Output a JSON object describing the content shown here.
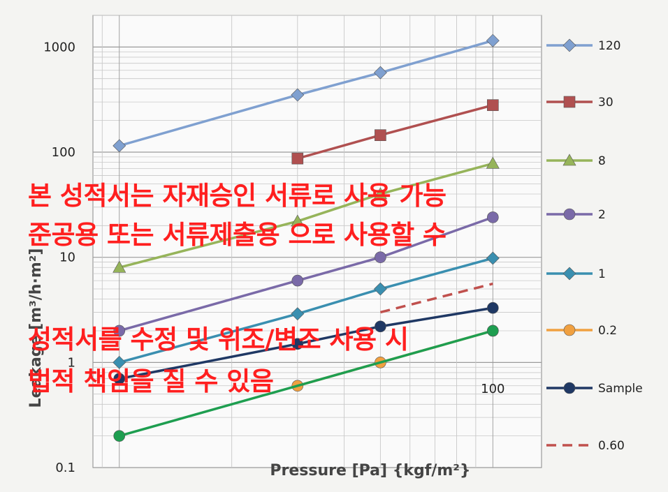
{
  "chart_data": {
    "type": "line",
    "xscale": "log",
    "yscale": "log",
    "xlabel": "Pressure [Pa] {kgf/m²}",
    "ylabel": "Leakage [m³/h·m²]",
    "ylim": [
      0.1,
      2000
    ],
    "yticks": [
      "1000",
      "100",
      "10",
      "1",
      "0.1"
    ],
    "xticks": [
      "100"
    ],
    "grid": true,
    "legend_position": "right",
    "series": [
      {
        "name": "120",
        "color": "#7fa0d0",
        "marker": "diamond",
        "x": [
          10,
          30,
          50,
          100
        ],
        "values": [
          115,
          350,
          570,
          1150
        ]
      },
      {
        "name": "30",
        "color": "#b05050",
        "marker": "square",
        "x": [
          30,
          50,
          100
        ],
        "values": [
          87,
          145,
          280
        ]
      },
      {
        "name": "8",
        "color": "#96b45a",
        "marker": "triangle",
        "x": [
          10,
          30,
          50,
          100
        ],
        "values": [
          8,
          22,
          40,
          78
        ]
      },
      {
        "name": "2",
        "color": "#7a6aa8",
        "marker": "circle",
        "x": [
          10,
          30,
          50,
          100
        ],
        "values": [
          2,
          6,
          10,
          24
        ]
      },
      {
        "name": "1",
        "color": "#3a8fb0",
        "marker": "diamond",
        "x": [
          10,
          30,
          50,
          100
        ],
        "values": [
          1,
          2.9,
          5,
          9.8
        ]
      },
      {
        "name": "0.2",
        "color": "#f0a040",
        "marker": "circle",
        "x": [
          30,
          50,
          100
        ],
        "values": [
          0.6,
          1,
          2
        ]
      },
      {
        "name": "Sample",
        "color": "#1f3864",
        "marker": "circle",
        "x": [
          10,
          30,
          50,
          100
        ],
        "values": [
          0.7,
          1.5,
          2.2,
          3.3
        ]
      },
      {
        "name": "0.60",
        "color": "#c0504d",
        "marker": "none",
        "dashed": true,
        "x": [
          50,
          100
        ],
        "values": [
          3,
          5.6
        ]
      },
      {
        "name": "",
        "color": "#1e9e50",
        "marker": "circle",
        "x": [
          10,
          100
        ],
        "values": [
          0.2,
          2
        ]
      }
    ]
  },
  "overlay": {
    "lines": [
      "본 성적서는 자재승인 서류로 사용 가능",
      "준공용 또는 서류제출용 으로 사용할 수",
      "성적서를 수정 및 위조/변조 사용 시",
      "법적 책임을 질 수 있음"
    ]
  }
}
